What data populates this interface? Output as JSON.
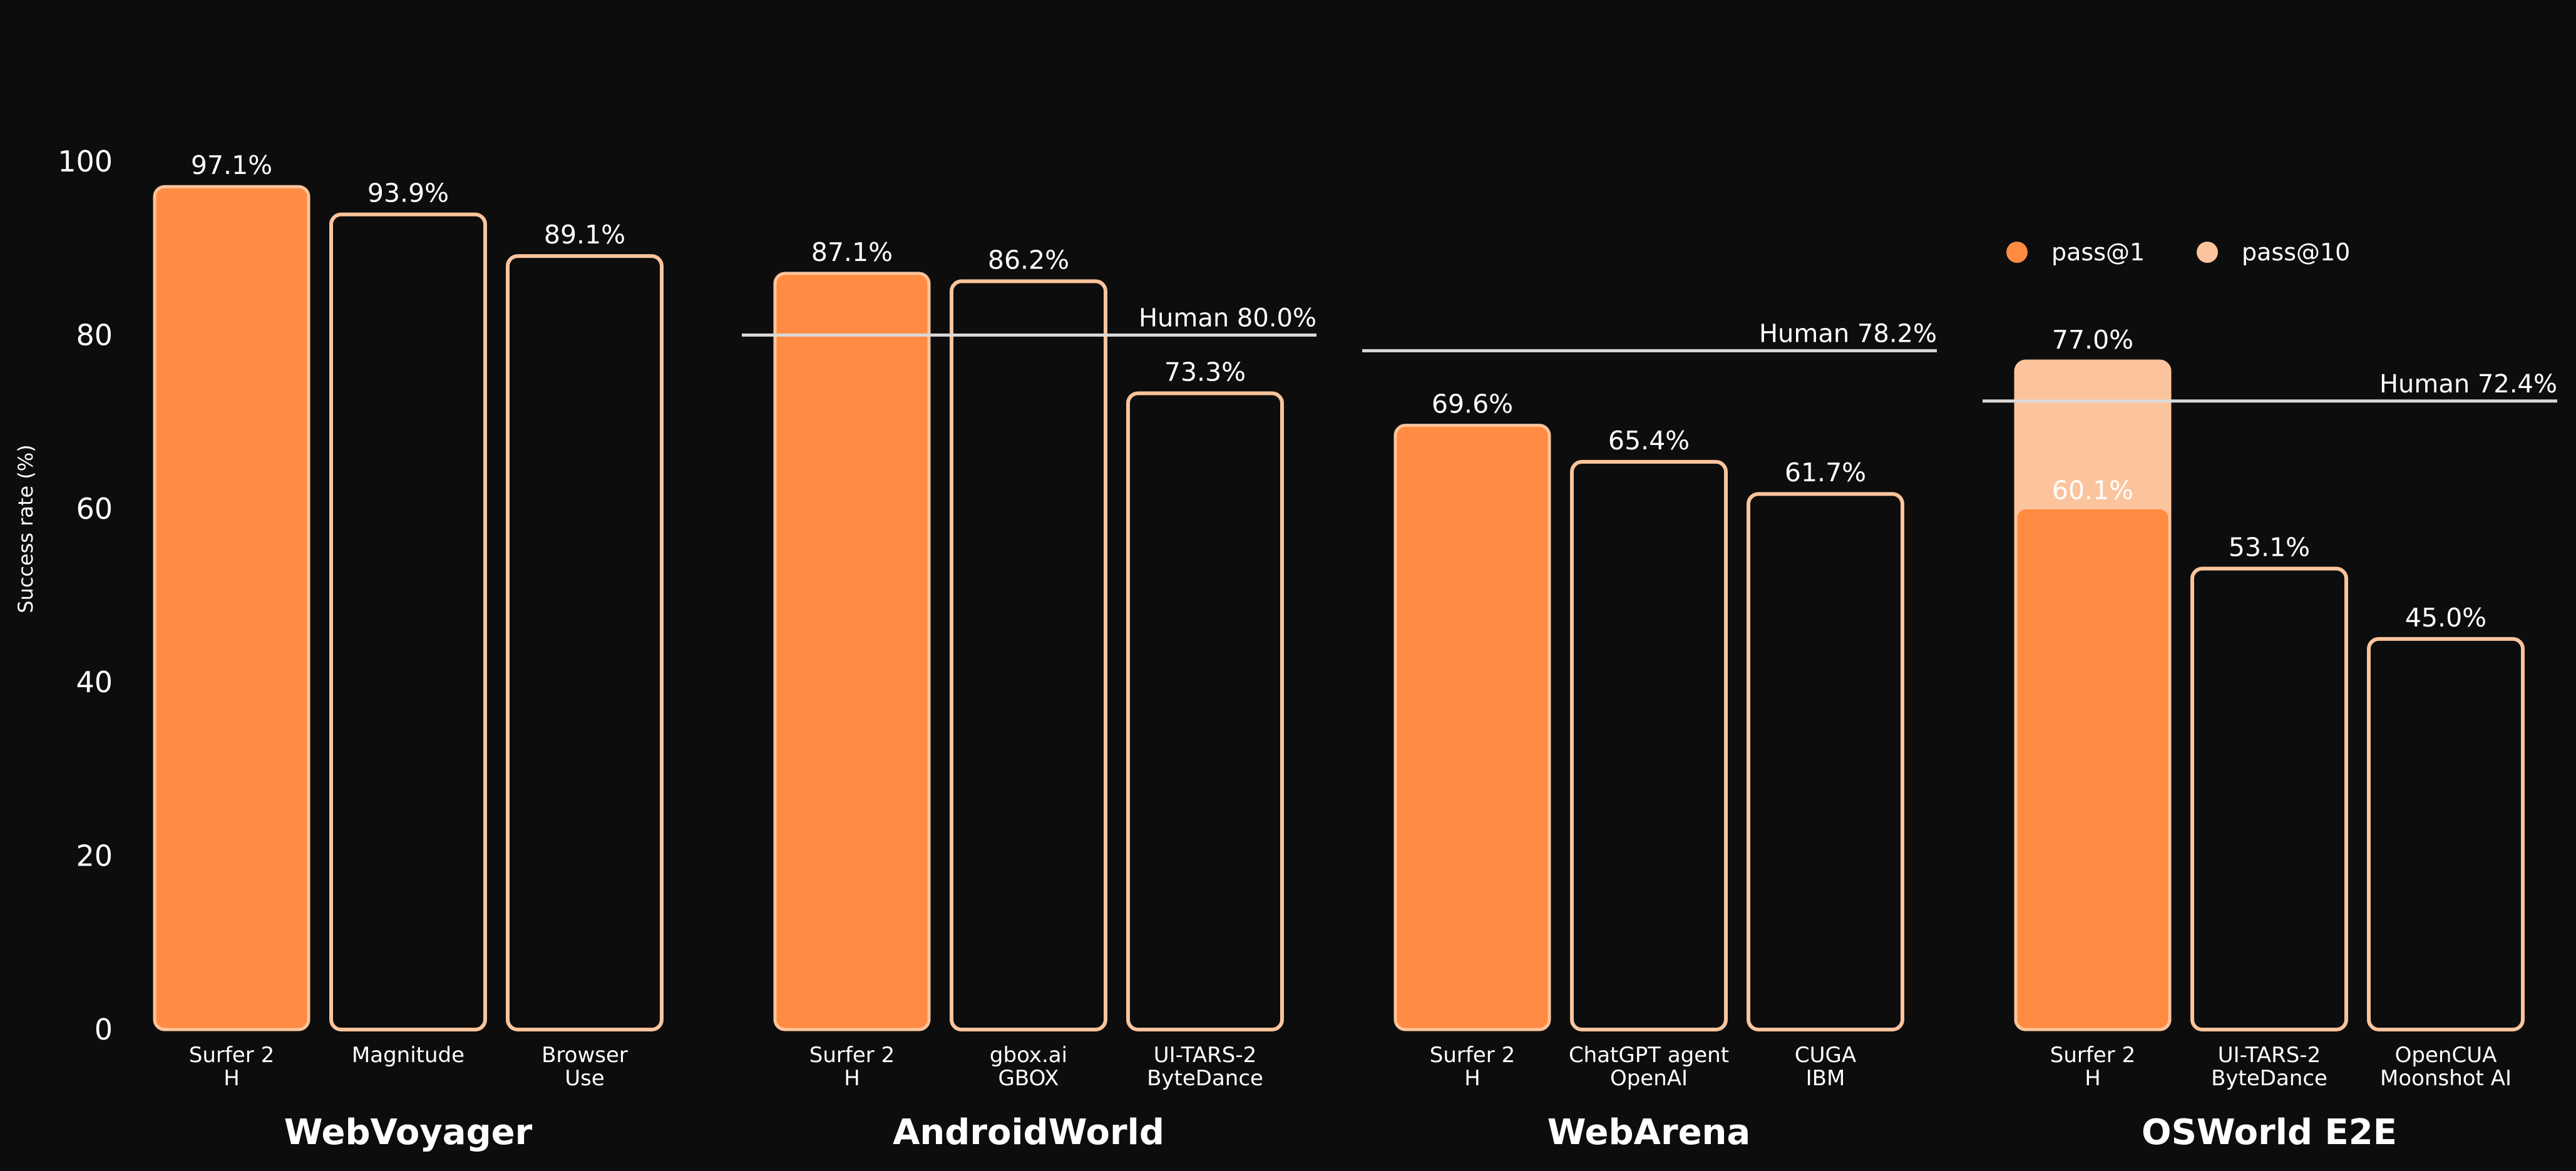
{
  "colors": {
    "background": "#0d0d0d",
    "pass1": "#ff8c42",
    "pass10": "#fcc49c",
    "outline": "#fcc49c",
    "human_line": "#d9d9d9",
    "text": "#ffffff"
  },
  "chart_data": {
    "type": "bar",
    "ylabel": "Success rate (%)",
    "ylim": [
      0,
      100
    ],
    "yticks": [
      "0",
      "20",
      "40",
      "60",
      "80",
      "100"
    ],
    "grid": false,
    "legend": {
      "placement": "top-right",
      "items": [
        {
          "label": "pass@1",
          "color": "#ff8c42"
        },
        {
          "label": "pass@10",
          "color": "#fcc49c"
        }
      ]
    },
    "groups": [
      {
        "name": "WebVoyager",
        "human": null,
        "bars": [
          {
            "line1": "Surfer 2",
            "line2": "H",
            "value": 97.1,
            "label": "97.1%",
            "highlight": true
          },
          {
            "line1": "Magnitude",
            "line2": "",
            "value": 93.9,
            "label": "93.9%",
            "highlight": false
          },
          {
            "line1": "Browser",
            "line2": "Use",
            "value": 89.1,
            "label": "89.1%",
            "highlight": false
          }
        ]
      },
      {
        "name": "AndroidWorld",
        "human": {
          "value": 80.0,
          "label": "Human 80.0%"
        },
        "bars": [
          {
            "line1": "Surfer 2",
            "line2": "H",
            "value": 87.1,
            "label": "87.1%",
            "highlight": true
          },
          {
            "line1": "gbox.ai",
            "line2": "GBOX",
            "value": 86.2,
            "label": "86.2%",
            "highlight": false
          },
          {
            "line1": "UI-TARS-2",
            "line2": "ByteDance",
            "value": 73.3,
            "label": "73.3%",
            "highlight": false
          }
        ]
      },
      {
        "name": "WebArena",
        "human": {
          "value": 78.2,
          "label": "Human 78.2%"
        },
        "bars": [
          {
            "line1": "Surfer 2",
            "line2": "H",
            "value": 69.6,
            "label": "69.6%",
            "highlight": true
          },
          {
            "line1": "ChatGPT agent",
            "line2": "OpenAI",
            "value": 65.4,
            "label": "65.4%",
            "highlight": false
          },
          {
            "line1": "CUGA",
            "line2": "IBM",
            "value": 61.7,
            "label": "61.7%",
            "highlight": false
          }
        ]
      },
      {
        "name": "OSWorld E2E",
        "human": {
          "value": 72.4,
          "label": "Human 72.4%"
        },
        "bars": [
          {
            "line1": "Surfer 2",
            "line2": "H",
            "value": 60.1,
            "label": "60.1%",
            "highlight": true,
            "value10": 77.0,
            "label10": "77.0%"
          },
          {
            "line1": "UI-TARS-2",
            "line2": "ByteDance",
            "value": 53.1,
            "label": "53.1%",
            "highlight": false
          },
          {
            "line1": "OpenCUA",
            "line2": "Moonshot AI",
            "value": 45.0,
            "label": "45.0%",
            "highlight": false
          }
        ]
      }
    ]
  }
}
